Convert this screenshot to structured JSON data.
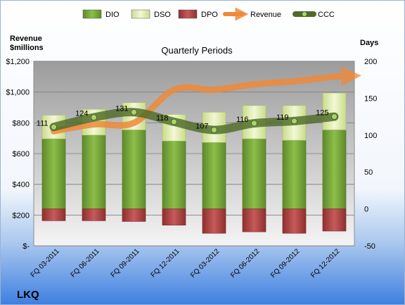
{
  "chart_data": {
    "type": "bar",
    "title": "Quarterly Periods",
    "company": "LKQ",
    "left_axis_label": [
      "Revenue",
      "$millions"
    ],
    "right_axis_label": "Days",
    "left_axis": {
      "min": 0,
      "max": 1200,
      "ticks": [
        "$-",
        "$200",
        "$400",
        "$600",
        "$800",
        "$1,000",
        "$1,200"
      ]
    },
    "right_axis": {
      "min": -50,
      "max": 200,
      "ticks": [
        "-50",
        "0",
        "50",
        "100",
        "150",
        "200"
      ]
    },
    "categories": [
      "FQ 03-2011",
      "FQ 06-2011",
      "FQ 09-2011",
      "FQ 12-2011",
      "FQ 03-2012",
      "FQ 06-2012",
      "FQ 09-2012",
      "FQ 12-2012"
    ],
    "legend_position": "top",
    "series": [
      {
        "name": "DIO",
        "axis": "right",
        "color": "#77A33A",
        "values": [
          95,
          100,
          107,
          92,
          90,
          95,
          93,
          107
        ]
      },
      {
        "name": "DSO",
        "axis": "right",
        "color": "#DDEBAE",
        "values": [
          32,
          35,
          37,
          36,
          41,
          45,
          47,
          50
        ]
      },
      {
        "name": "DPO",
        "axis": "right",
        "color": "#B84B4B",
        "values": [
          16,
          16,
          17,
          22,
          33,
          31,
          33,
          30
        ]
      },
      {
        "name": "Revenue",
        "axis": "left",
        "color": "#EE8A3A",
        "values": [
          745,
          790,
          800,
          1015,
          1015,
          1050,
          1070,
          1100
        ]
      },
      {
        "name": "CCC",
        "axis": "right",
        "color": "#5A7B2E",
        "values": [
          111,
          124,
          131,
          118,
          107,
          116,
          119,
          125
        ]
      }
    ],
    "data_labels": [
      "111",
      "124",
      "131",
      "118",
      "107",
      "116",
      "119",
      "125"
    ]
  }
}
